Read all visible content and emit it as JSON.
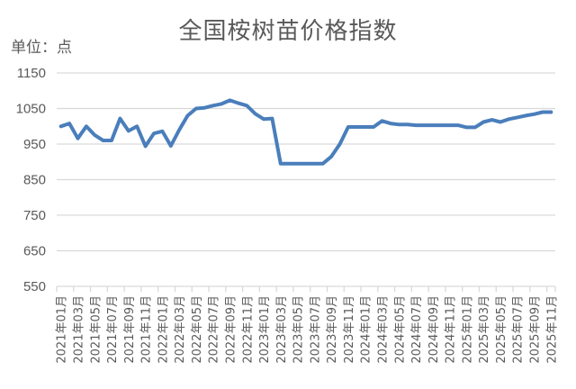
{
  "chart_data": {
    "type": "line",
    "title": "全国桉树苗价格指数",
    "unit_label": "单位：点",
    "xlabel": "",
    "ylabel": "单位：点",
    "ylim": [
      550,
      1150
    ],
    "yticks": [
      550,
      650,
      750,
      850,
      950,
      1050,
      1150
    ],
    "grid": true,
    "legend": "none",
    "line_color": "#4a7ebb",
    "x": [
      "2021年01月",
      "2021年02月",
      "2021年03月",
      "2021年04月",
      "2021年05月",
      "2021年06月",
      "2021年07月",
      "2021年08月",
      "2021年09月",
      "2021年10月",
      "2021年11月",
      "2021年12月",
      "2022年01月",
      "2022年02月",
      "2022年03月",
      "2022年04月",
      "2022年05月",
      "2022年06月",
      "2022年07月",
      "2022年08月",
      "2022年09月",
      "2022年10月",
      "2022年11月",
      "2022年12月",
      "2023年01月",
      "2023年02月",
      "2023年03月",
      "2023年04月",
      "2023年05月",
      "2023年06月",
      "2023年07月",
      "2023年08月",
      "2023年09月",
      "2023年10月",
      "2023年11月",
      "2023年12月",
      "2024年01月",
      "2024年02月",
      "2024年03月",
      "2024年04月",
      "2024年05月",
      "2024年06月",
      "2024年07月",
      "2024年08月",
      "2024年09月",
      "2024年10月",
      "2024年11月",
      "2024年12月",
      "2025年01月",
      "2025年02月",
      "2025年03月",
      "2025年04月",
      "2025年05月",
      "2025年06月",
      "2025年07月",
      "2025年08月",
      "2025年09月",
      "2025年10月",
      "2025年11月"
    ],
    "xtick_labels": [
      "2021年01月",
      "2021年03月",
      "2021年05月",
      "2021年07月",
      "2021年09月",
      "2021年11月",
      "2022年01月",
      "2022年03月",
      "2022年05月",
      "2022年07月",
      "2022年09月",
      "2022年11月",
      "2023年01月",
      "2023年03月",
      "2023年05月",
      "2023年07月",
      "2023年09月",
      "2023年11月",
      "2024年01月",
      "2024年03月",
      "2024年05月",
      "2024年07月",
      "2024年09月",
      "2024年11月",
      "2025年01月",
      "2025年03月",
      "2025年05月",
      "2025年07月",
      "2025年09月",
      "2025年11月"
    ],
    "series": [
      {
        "name": "全国桉树苗价格指数",
        "values": [
          1000,
          1008,
          966,
          1000,
          975,
          960,
          960,
          1022,
          987,
          1000,
          944,
          980,
          986,
          945,
          990,
          1030,
          1050,
          1052,
          1058,
          1063,
          1073,
          1065,
          1058,
          1035,
          1020,
          1022,
          895,
          895,
          895,
          895,
          895,
          895,
          915,
          950,
          998,
          998,
          998,
          998,
          1015,
          1008,
          1005,
          1005,
          1003,
          1003,
          1003,
          1003,
          1003,
          1003,
          997,
          997,
          1012,
          1018,
          1012,
          1020,
          1025,
          1030,
          1034,
          1040,
          1040
        ]
      }
    ]
  }
}
